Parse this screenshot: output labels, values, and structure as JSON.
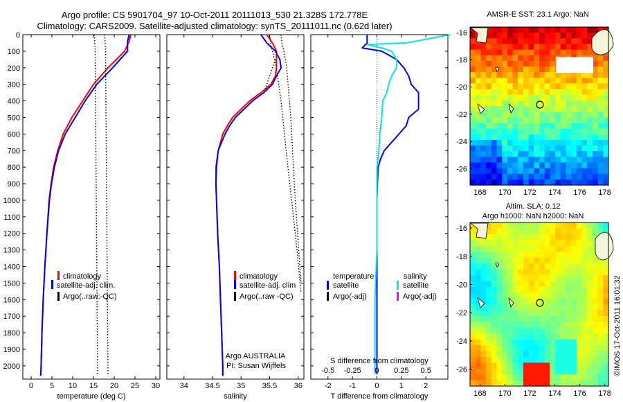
{
  "header": {
    "line1": "Argo profile: CS 5901704_97 10-Oct-2011 20111013_530 21.328S 172.778E",
    "line2": "Climatology: CARS2009. Satellite-adjusted climatology: synTS_20111011.nc (0.62d later)"
  },
  "colors": {
    "climatology": "#ff0000",
    "satellite": "#0000ff",
    "argo": "#000000",
    "sat_salinity": "#00e5ee",
    "argo_salinity": "#ff00ff"
  },
  "chart_data": [
    {
      "type": "line",
      "xlabel": "temperature (deg C)",
      "ylabel": "",
      "xlim": [
        -2,
        31
      ],
      "ylim": [
        2080,
        0
      ],
      "x_ticks": [
        "0",
        "5",
        "10",
        "15",
        "20",
        "25",
        "30"
      ],
      "y_ticks": [
        "0",
        "100",
        "200",
        "300",
        "400",
        "500",
        "600",
        "700",
        "800",
        "900",
        "1000",
        "1100",
        "1200",
        "1300",
        "1400",
        "1500",
        "1600",
        "1700",
        "1800",
        "1900",
        "2000"
      ],
      "legend": [
        "climatology",
        "satellite-adj. clim.",
        "Argo(..raw:-QC)"
      ],
      "series": [
        {
          "name": "climatology",
          "depth": [
            0,
            40,
            100,
            200,
            300,
            400,
            500,
            600,
            700,
            800,
            900,
            1000,
            1200,
            1400,
            1600,
            1800,
            2000,
            2060
          ],
          "values": [
            24.0,
            23.6,
            22.5,
            18.5,
            15.0,
            12.4,
            9.8,
            7.7,
            6.4,
            5.4,
            4.8,
            4.3,
            3.8,
            3.3,
            2.9,
            2.6,
            2.4,
            2.3
          ]
        },
        {
          "name": "satellite-adj. clim.",
          "depth": [
            0,
            40,
            100,
            200,
            300,
            400,
            500,
            600,
            700,
            800,
            900,
            1000,
            1200,
            1400,
            1600,
            1800,
            2000,
            2060
          ],
          "values": [
            23.6,
            23.2,
            23.2,
            19.6,
            15.8,
            13.0,
            10.6,
            8.2,
            6.6,
            5.6,
            4.9,
            4.4,
            3.8,
            3.3,
            2.9,
            2.6,
            2.4,
            2.3
          ]
        },
        {
          "name": "Argo(..raw:-QC)",
          "depth": [
            0,
            80,
            2050
          ],
          "values": [
            15.2,
            15.4,
            16.0
          ]
        },
        {
          "name": "Argo(..raw:-QC)",
          "depth": [
            0,
            80,
            2050
          ],
          "values": [
            17.7,
            17.9,
            18.5
          ]
        }
      ],
      "annotation": ""
    },
    {
      "type": "line",
      "xlabel": "salinity",
      "ylabel": "",
      "xlim": [
        33.7,
        36.1
      ],
      "ylim": [
        2080,
        0
      ],
      "x_ticks": [
        "34",
        "34.5",
        "35",
        "35.5",
        "36"
      ],
      "legend": [
        "climatology",
        "satellite-adj. clim",
        "Argo(..raw -QC)"
      ],
      "series": [
        {
          "name": "climatology",
          "depth": [
            0,
            50,
            100,
            150,
            200,
            250,
            300,
            350,
            400,
            450,
            500,
            550,
            600,
            700,
            800,
            900,
            1000,
            1200,
            1400,
            1600,
            1800,
            2000,
            2060
          ],
          "values": [
            35.45,
            35.55,
            35.62,
            35.62,
            35.62,
            35.6,
            35.52,
            35.35,
            35.15,
            35.0,
            34.85,
            34.76,
            34.68,
            34.6,
            34.56,
            34.56,
            34.57,
            34.59,
            34.62,
            34.64,
            34.66,
            34.68,
            34.68
          ]
        },
        {
          "name": "satellite-adj. clim",
          "depth": [
            0,
            50,
            100,
            150,
            200,
            250,
            300,
            350,
            400,
            450,
            500,
            550,
            600,
            700,
            800,
            900,
            1000,
            1200,
            1400,
            1600,
            1800,
            2000,
            2060
          ],
          "values": [
            35.35,
            35.45,
            35.6,
            35.68,
            35.7,
            35.62,
            35.55,
            35.4,
            35.2,
            35.05,
            34.9,
            34.8,
            34.72,
            34.6,
            34.57,
            34.56,
            34.57,
            34.59,
            34.62,
            34.64,
            34.66,
            34.68,
            34.68
          ]
        },
        {
          "name": "Argo(..raw -QC)",
          "depth": [
            0,
            60,
            100,
            200,
            400,
            800,
            1200,
            1560
          ],
          "values": [
            35.5,
            35.52,
            35.55,
            35.62,
            35.7,
            35.82,
            35.95,
            36.05
          ]
        },
        {
          "name": "Argo(..raw -QC)",
          "depth": [
            0,
            60,
            100,
            200,
            500,
            1000,
            1500
          ],
          "values": [
            35.7,
            35.72,
            35.75,
            35.8,
            35.87,
            35.95,
            36.05
          ]
        },
        {
          "name": "Argo(..raw -QC)",
          "depth": [
            150,
            200,
            250,
            300,
            350
          ],
          "values": [
            35.6,
            35.55,
            35.5,
            35.45,
            35.4
          ]
        }
      ],
      "annotation1": "Argo AUSTRALIA",
      "annotation2": "PI: Susan Wijffels"
    },
    {
      "type": "line",
      "xlabel": "T difference from climatology",
      "xlabel_top": "S difference from climatology",
      "xlim": [
        -2.7,
        2.9
      ],
      "ylim": [
        2080,
        0
      ],
      "x_ticks": [
        "-2",
        "-1",
        "0",
        "1",
        "2"
      ],
      "x_ticks_top": [
        "-0.5",
        "-0.25",
        "0",
        "0.25",
        "0.5"
      ],
      "legend_temp_title": "temperature",
      "legend_sal_title": "salinity",
      "legend": [
        "satellite",
        "Argo(-adj)",
        "satellite",
        "Argo(-adj)"
      ],
      "series": [
        {
          "name": "satellite",
          "depth": [
            0,
            50,
            80,
            100,
            150,
            200,
            250,
            300,
            350,
            400,
            450,
            500,
            550,
            600,
            650,
            700,
            750,
            800,
            900,
            1000,
            1200,
            1500,
            1800,
            2050
          ],
          "values": [
            -0.4,
            -0.4,
            -0.6,
            0.2,
            0.8,
            1.1,
            1.3,
            1.4,
            1.7,
            1.7,
            1.7,
            1.3,
            1.2,
            0.9,
            0.6,
            0.3,
            0.15,
            0.05,
            0.02,
            0.0,
            0.0,
            0.0,
            0.0,
            0.0
          ]
        },
        {
          "name": "satellite",
          "depth": [
            0,
            50,
            60,
            80,
            100,
            150,
            200,
            250,
            300,
            350,
            400,
            500,
            600,
            700,
            800,
            1000,
            1300,
            1600,
            1900,
            2050
          ],
          "values": [
            0.75,
            0.3,
            -0.1,
            0.05,
            0.15,
            0.2,
            0.2,
            0.15,
            0.12,
            0.1,
            0.06,
            0.05,
            0.03,
            0.02,
            0.0,
            0.0,
            0.0,
            -0.02,
            -0.02,
            -0.02
          ]
        }
      ]
    }
  ],
  "maps": [
    {
      "title": "AMSR-E SST: 23.1  Argo: NaN",
      "title2": "",
      "x_ticks": [
        "168",
        "170",
        "172",
        "174",
        "176",
        "178"
      ],
      "y_ticks": [
        "-16",
        "-18",
        "-20",
        "-22",
        "-24",
        "-26"
      ],
      "marker_lon": 172.8,
      "marker_lat": -21.3
    },
    {
      "title": "Altim. SLA: 0.12",
      "title2": "Argo h1000: NaN h2000: NaN",
      "x_ticks": [
        "168",
        "170",
        "172",
        "174",
        "176",
        "178"
      ],
      "y_ticks": [
        "-16",
        "-18",
        "-20",
        "-22",
        "-24",
        "-26"
      ],
      "marker_lon": 172.8,
      "marker_lat": -21.3
    }
  ],
  "footer_stamp": "©IMOS 17-Oct-2011 16:01:32"
}
